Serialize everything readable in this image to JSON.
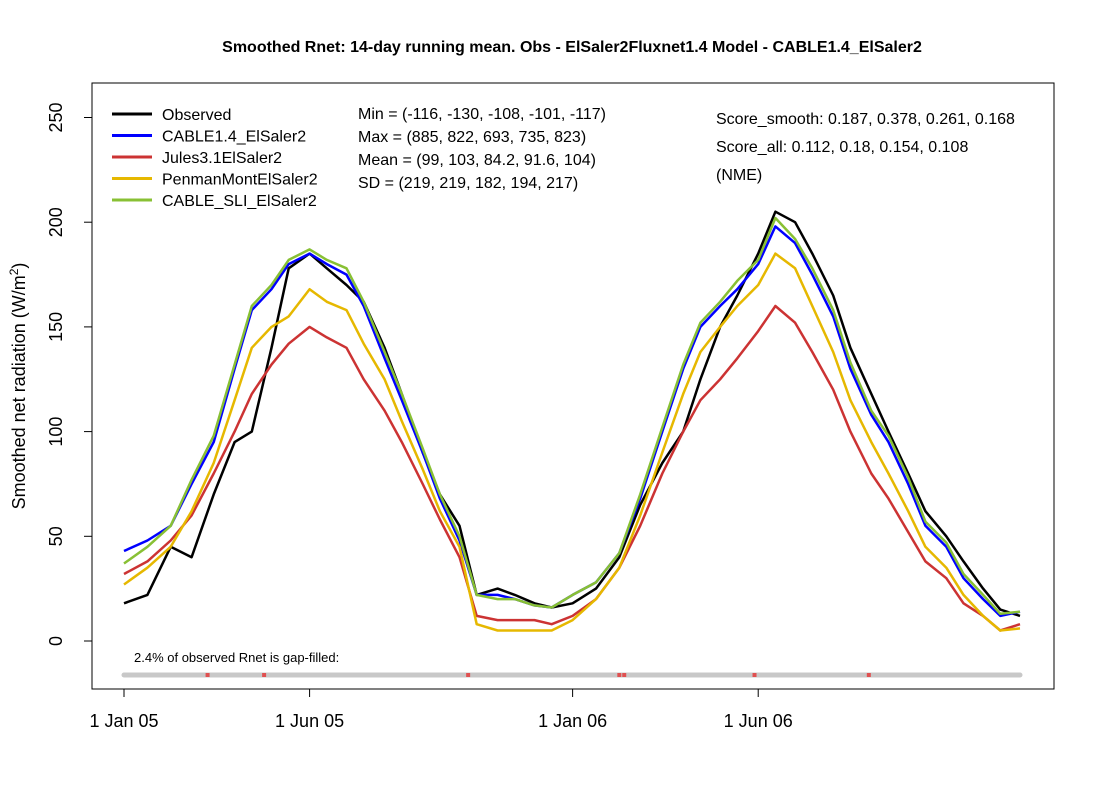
{
  "chart_data": {
    "type": "line",
    "title": "Smoothed Rnet: 14-day running mean.   Obs - ElSaler2Fluxnet1.4   Model - CABLE1.4_ElSaler2",
    "ylabel": "Smoothed net radiation  (W/m",
    "ylabel_sup": "2",
    "ylabel_close": ")",
    "xlabel": "",
    "ylim": [
      -22,
      262
    ],
    "xlim": [
      "2005-01-01",
      "2006-12-31"
    ],
    "yticks": [
      0,
      50,
      100,
      150,
      200,
      250
    ],
    "xticks": [
      {
        "date": "2005-01-01",
        "label": "1 Jan 05"
      },
      {
        "date": "2005-06-01",
        "label": "1 Jun 05"
      },
      {
        "date": "2006-01-01",
        "label": "1 Jan 06"
      },
      {
        "date": "2006-06-01",
        "label": "1 Jun 06"
      }
    ],
    "legend_position": "top-left",
    "series": [
      {
        "name": "Observed",
        "color": "#000000",
        "x": [
          "2005-01-01",
          "2005-01-20",
          "2005-02-08",
          "2005-02-25",
          "2005-03-15",
          "2005-04-01",
          "2005-04-15",
          "2005-05-01",
          "2005-05-15",
          "2005-06-01",
          "2005-06-15",
          "2005-07-01",
          "2005-07-15",
          "2005-08-01",
          "2005-08-15",
          "2005-09-01",
          "2005-09-15",
          "2005-10-01",
          "2005-10-15",
          "2005-11-01",
          "2005-11-15",
          "2005-12-01",
          "2005-12-15",
          "2006-01-01",
          "2006-01-20",
          "2006-02-08",
          "2006-02-25",
          "2006-03-15",
          "2006-04-01",
          "2006-04-15",
          "2006-05-01",
          "2006-05-15",
          "2006-06-01",
          "2006-06-15",
          "2006-07-01",
          "2006-07-15",
          "2006-08-01",
          "2006-08-15",
          "2006-09-01",
          "2006-09-15",
          "2006-10-01",
          "2006-10-15",
          "2006-11-01",
          "2006-11-15",
          "2006-12-01",
          "2006-12-15",
          "2006-12-31"
        ],
        "y": [
          18,
          22,
          45,
          40,
          70,
          95,
          100,
          140,
          178,
          185,
          178,
          170,
          162,
          140,
          118,
          90,
          70,
          55,
          22,
          25,
          22,
          18,
          16,
          18,
          25,
          40,
          65,
          85,
          100,
          125,
          150,
          165,
          185,
          205,
          200,
          185,
          165,
          140,
          118,
          100,
          80,
          62,
          50,
          38,
          25,
          15,
          12
        ]
      },
      {
        "name": "CABLE1.4_ElSaler2",
        "color": "#0000ff",
        "x": [
          "2005-01-01",
          "2005-01-20",
          "2005-02-08",
          "2005-02-25",
          "2005-03-15",
          "2005-04-01",
          "2005-04-15",
          "2005-05-01",
          "2005-05-15",
          "2005-06-01",
          "2005-06-15",
          "2005-07-01",
          "2005-07-15",
          "2005-08-01",
          "2005-08-15",
          "2005-09-01",
          "2005-09-15",
          "2005-10-01",
          "2005-10-15",
          "2005-11-01",
          "2005-11-15",
          "2005-12-01",
          "2005-12-15",
          "2006-01-01",
          "2006-01-20",
          "2006-02-08",
          "2006-02-25",
          "2006-03-15",
          "2006-04-01",
          "2006-04-15",
          "2006-05-01",
          "2006-05-15",
          "2006-06-01",
          "2006-06-15",
          "2006-07-01",
          "2006-07-15",
          "2006-08-01",
          "2006-08-15",
          "2006-09-01",
          "2006-09-15",
          "2006-10-01",
          "2006-10-15",
          "2006-11-01",
          "2006-11-15",
          "2006-12-01",
          "2006-12-15",
          "2006-12-31"
        ],
        "y": [
          43,
          48,
          55,
          75,
          95,
          130,
          158,
          168,
          180,
          185,
          180,
          175,
          160,
          135,
          115,
          90,
          68,
          48,
          22,
          22,
          20,
          17,
          16,
          22,
          28,
          42,
          68,
          100,
          130,
          150,
          160,
          168,
          180,
          198,
          190,
          175,
          155,
          130,
          108,
          95,
          75,
          55,
          45,
          30,
          20,
          12,
          14
        ]
      },
      {
        "name": "Jules3.1ElSaler2",
        "color": "#cc3333",
        "x": [
          "2005-01-01",
          "2005-01-20",
          "2005-02-08",
          "2005-02-25",
          "2005-03-15",
          "2005-04-01",
          "2005-04-15",
          "2005-05-01",
          "2005-05-15",
          "2005-06-01",
          "2005-06-15",
          "2005-07-01",
          "2005-07-15",
          "2005-08-01",
          "2005-08-15",
          "2005-09-01",
          "2005-09-15",
          "2005-10-01",
          "2005-10-15",
          "2005-11-01",
          "2005-11-15",
          "2005-12-01",
          "2005-12-15",
          "2006-01-01",
          "2006-01-20",
          "2006-02-08",
          "2006-02-25",
          "2006-03-15",
          "2006-04-01",
          "2006-04-15",
          "2006-05-01",
          "2006-05-15",
          "2006-06-01",
          "2006-06-15",
          "2006-07-01",
          "2006-07-15",
          "2006-08-01",
          "2006-08-15",
          "2006-09-01",
          "2006-09-15",
          "2006-10-01",
          "2006-10-15",
          "2006-11-01",
          "2006-11-15",
          "2006-12-01",
          "2006-12-15",
          "2006-12-31"
        ],
        "y": [
          32,
          38,
          48,
          60,
          80,
          100,
          118,
          132,
          142,
          150,
          145,
          140,
          125,
          110,
          95,
          75,
          58,
          40,
          12,
          10,
          10,
          10,
          8,
          12,
          20,
          35,
          55,
          80,
          100,
          115,
          125,
          135,
          148,
          160,
          152,
          138,
          120,
          100,
          80,
          68,
          52,
          38,
          30,
          18,
          12,
          5,
          8
        ]
      },
      {
        "name": "PenmanMontElSaler2",
        "color": "#e6b800",
        "x": [
          "2005-01-01",
          "2005-01-20",
          "2005-02-08",
          "2005-02-25",
          "2005-03-15",
          "2005-04-01",
          "2005-04-15",
          "2005-05-01",
          "2005-05-15",
          "2005-06-01",
          "2005-06-15",
          "2005-07-01",
          "2005-07-15",
          "2005-08-01",
          "2005-08-15",
          "2005-09-01",
          "2005-09-15",
          "2005-10-01",
          "2005-10-15",
          "2005-11-01",
          "2005-11-15",
          "2005-12-01",
          "2005-12-15",
          "2006-01-01",
          "2006-01-20",
          "2006-02-08",
          "2006-02-25",
          "2006-03-15",
          "2006-04-01",
          "2006-04-15",
          "2006-05-01",
          "2006-05-15",
          "2006-06-01",
          "2006-06-15",
          "2006-07-01",
          "2006-07-15",
          "2006-08-01",
          "2006-08-15",
          "2006-09-01",
          "2006-09-15",
          "2006-10-01",
          "2006-10-15",
          "2006-11-01",
          "2006-11-15",
          "2006-12-01",
          "2006-12-15",
          "2006-12-31"
        ],
        "y": [
          27,
          35,
          45,
          62,
          85,
          115,
          140,
          150,
          155,
          168,
          162,
          158,
          142,
          125,
          105,
          82,
          62,
          45,
          8,
          5,
          5,
          5,
          5,
          10,
          20,
          35,
          60,
          90,
          118,
          138,
          150,
          160,
          170,
          185,
          178,
          160,
          138,
          115,
          95,
          80,
          62,
          45,
          35,
          22,
          12,
          5,
          6
        ]
      },
      {
        "name": "CABLE_SLI_ElSaler2",
        "color": "#88c034",
        "x": [
          "2005-01-01",
          "2005-01-20",
          "2005-02-08",
          "2005-02-25",
          "2005-03-15",
          "2005-04-01",
          "2005-04-15",
          "2005-05-01",
          "2005-05-15",
          "2005-06-01",
          "2005-06-15",
          "2005-07-01",
          "2005-07-15",
          "2005-08-01",
          "2005-08-15",
          "2005-09-01",
          "2005-09-15",
          "2005-10-01",
          "2005-10-15",
          "2005-11-01",
          "2005-11-15",
          "2005-12-01",
          "2005-12-15",
          "2006-01-01",
          "2006-01-20",
          "2006-02-08",
          "2006-02-25",
          "2006-03-15",
          "2006-04-01",
          "2006-04-15",
          "2006-05-01",
          "2006-05-15",
          "2006-06-01",
          "2006-06-15",
          "2006-07-01",
          "2006-07-15",
          "2006-08-01",
          "2006-08-15",
          "2006-09-01",
          "2006-09-15",
          "2006-10-01",
          "2006-10-15",
          "2006-11-01",
          "2006-11-15",
          "2006-12-01",
          "2006-12-15",
          "2006-12-31"
        ],
        "y": [
          37,
          45,
          55,
          77,
          98,
          132,
          160,
          170,
          182,
          187,
          182,
          178,
          162,
          138,
          118,
          92,
          70,
          50,
          22,
          20,
          20,
          17,
          16,
          22,
          28,
          42,
          70,
          102,
          132,
          152,
          162,
          172,
          182,
          202,
          192,
          178,
          158,
          133,
          110,
          98,
          78,
          57,
          47,
          32,
          22,
          13,
          14
        ]
      }
    ],
    "stats_text": [
      "Min = (-116, -130, -108, -101, -117)",
      "Max = (885, 822, 693, 735, 823)",
      "Mean = (99, 103, 84.2, 91.6, 104)",
      "SD = (219, 219, 182, 194, 217)"
    ],
    "score_text": [
      "Score_smooth: 0.187, 0.378, 0.261, 0.168",
      "Score_all: 0.112, 0.18, 0.154, 0.108",
      " (NME)"
    ],
    "gap_fill_text": "2.4% of observed Rnet is gap-filled:",
    "gap_bar_color": "#c8c8c8",
    "gap_marker_color": "#e05050",
    "gap_dates": [
      "2005-03-10",
      "2005-04-25",
      "2005-10-08",
      "2006-02-08",
      "2006-02-12",
      "2006-05-29",
      "2006-08-30"
    ]
  }
}
